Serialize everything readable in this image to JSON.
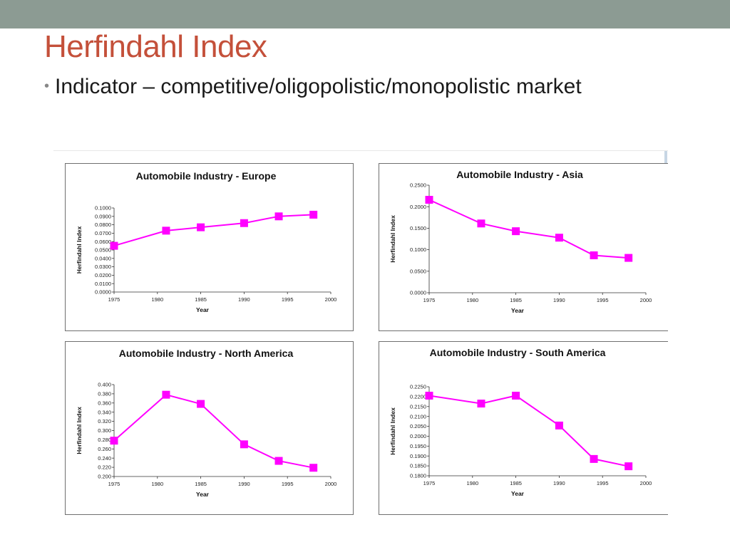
{
  "slide": {
    "title": "Herfindahl Index",
    "bullet": "Indicator – competitive/oligopolistic/monopolistic market"
  },
  "colors": {
    "topbar": "#8c9b93",
    "title": "#c4503a",
    "series": "#ff00ff",
    "marker": "#ff00ff"
  },
  "chart_data": [
    {
      "type": "line",
      "title": "Automobile Industry - Europe",
      "xlabel": "Year",
      "ylabel": "Herfindahl Index",
      "x": [
        1975,
        1981,
        1985,
        1990,
        1994,
        1998
      ],
      "values": [
        0.055,
        0.073,
        0.077,
        0.082,
        0.09,
        0.092
      ],
      "xlim": [
        1975,
        2000
      ],
      "ylim": [
        0,
        0.1
      ],
      "xticks": [
        "1975",
        "1980",
        "1985",
        "1990",
        "1995",
        "2000"
      ],
      "yticks": [
        "0.0000",
        "0.0100",
        "0.0200",
        "0.0300",
        "0.0400",
        "0.0500",
        "0.0600",
        "0.0700",
        "0.0800",
        "0.0900",
        "0.1000"
      ]
    },
    {
      "type": "line",
      "title": "Automobile Industry - Asia",
      "xlabel": "Year",
      "ylabel": "Herfindahl Index",
      "x": [
        1975,
        1981,
        1985,
        1990,
        1994,
        1998
      ],
      "values": [
        0.216,
        0.161,
        0.143,
        0.128,
        0.087,
        0.081
      ],
      "xlim": [
        1975,
        2000
      ],
      "ylim": [
        0,
        0.25
      ],
      "xticks": [
        "1975",
        "1980",
        "1985",
        "1990",
        "1995",
        "2000"
      ],
      "yticks": [
        "0.0000",
        "0.0500",
        "0.1000",
        "0.1500",
        "0.2000",
        "0.2500"
      ]
    },
    {
      "type": "line",
      "title": "Automobile Industry -  North America",
      "xlabel": "Year",
      "ylabel": "Herfindahl Index",
      "x": [
        1975,
        1981,
        1985,
        1990,
        1994,
        1998
      ],
      "values": [
        0.278,
        0.378,
        0.358,
        0.27,
        0.234,
        0.219
      ],
      "xlim": [
        1975,
        2000
      ],
      "ylim": [
        0.2,
        0.4
      ],
      "xticks": [
        "1975",
        "1980",
        "1985",
        "1990",
        "1995",
        "2000"
      ],
      "yticks": [
        "0.200",
        "0.220",
        "0.240",
        "0.260",
        "0.280",
        "0.300",
        "0.320",
        "0.340",
        "0.360",
        "0.380",
        "0.400"
      ]
    },
    {
      "type": "line",
      "title": "Automobile Industry - South America",
      "xlabel": "Year",
      "ylabel": "Herfindahl Index",
      "x": [
        1975,
        1981,
        1985,
        1990,
        1994,
        1998
      ],
      "values": [
        0.2205,
        0.2165,
        0.2205,
        0.2054,
        0.1885,
        0.1848
      ],
      "xlim": [
        1975,
        2000
      ],
      "ylim": [
        0.18,
        0.225
      ],
      "xticks": [
        "1975",
        "1980",
        "1985",
        "1990",
        "1995",
        "2000"
      ],
      "yticks": [
        "0.1800",
        "0.1850",
        "0.1900",
        "0.1950",
        "0.2000",
        "0.2050",
        "0.2100",
        "0.2150",
        "0.2200",
        "0.2250"
      ]
    }
  ]
}
